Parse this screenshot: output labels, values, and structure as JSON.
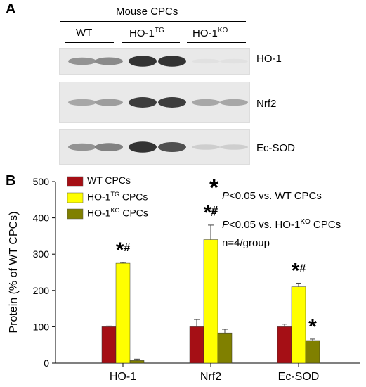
{
  "panel_a": {
    "label": "A",
    "header": "Mouse CPCs",
    "groups": [
      {
        "name": "WT",
        "sup": ""
      },
      {
        "name": "HO-1",
        "sup": "TG"
      },
      {
        "name": "HO-1",
        "sup": "KO"
      }
    ],
    "blots": [
      {
        "name": "HO-1",
        "intensity": [
          0.45,
          0.5,
          0.95,
          0.95,
          0.05,
          0.05
        ]
      },
      {
        "name": "Nrf2",
        "intensity": [
          0.35,
          0.4,
          0.9,
          0.9,
          0.35,
          0.35
        ]
      },
      {
        "name": "Ec-SOD",
        "intensity": [
          0.45,
          0.55,
          0.95,
          0.8,
          0.15,
          0.15
        ]
      }
    ]
  },
  "panel_b": {
    "label": "B",
    "annotations": {
      "sig1_text": "<0.05 vs. WT CPCs",
      "sig2_text": "<0.05 vs. HO-1",
      "sig2_sup": "KO",
      "sig2_tail": " CPCs",
      "p_symbol": "P",
      "n_text": "n=4/group"
    }
  },
  "chart_data": {
    "type": "bar",
    "ylabel": "Protein (% of WT CPCs)",
    "ylim": [
      0,
      500
    ],
    "yticks": [
      0,
      100,
      200,
      300,
      400,
      500
    ],
    "categories": [
      "HO-1",
      "Nrf2",
      "Ec-SOD"
    ],
    "series": [
      {
        "name": "WT CPCs",
        "legend_sup": "",
        "legend_base": "WT CPCs",
        "color": "#a50f15",
        "values": [
          100,
          100,
          100
        ],
        "errors": [
          2,
          20,
          7
        ],
        "marks": [
          "",
          "",
          ""
        ]
      },
      {
        "name": "HO-1TG CPCs",
        "legend_base": "HO-1",
        "legend_sup": "TG",
        "legend_tail": " CPCs",
        "color": "#ffff00",
        "values": [
          275,
          340,
          210
        ],
        "errors": [
          2,
          40,
          10
        ],
        "marks": [
          "*#",
          "*#",
          "*#"
        ]
      },
      {
        "name": "HO-1KO CPCs",
        "legend_base": "HO-1",
        "legend_sup": "KO",
        "legend_tail": " CPCs",
        "color": "#808000",
        "values": [
          7,
          83,
          62
        ],
        "errors": [
          4,
          10,
          4
        ],
        "marks": [
          "",
          "",
          "*"
        ]
      }
    ],
    "legend_position": "top-left"
  }
}
